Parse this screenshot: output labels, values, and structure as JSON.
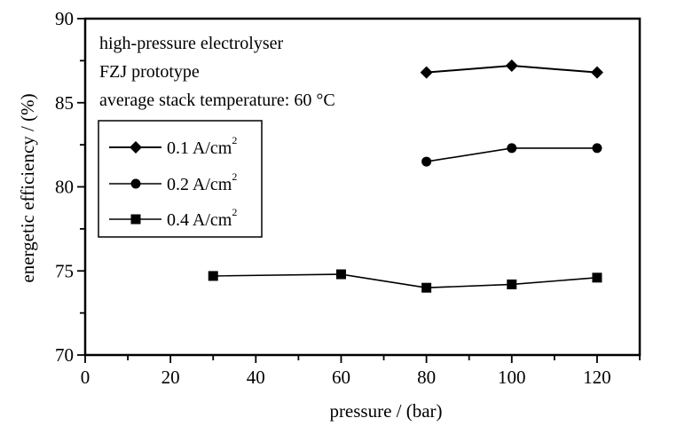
{
  "chart_data": {
    "type": "line",
    "title": "",
    "xlabel": "pressure / (bar)",
    "ylabel": "energetic efficiency / (%)",
    "xlim": [
      0,
      130
    ],
    "ylim": [
      70,
      90
    ],
    "xticks": [
      0,
      20,
      40,
      60,
      80,
      100,
      120
    ],
    "yticks": [
      70,
      75,
      80,
      85,
      90
    ],
    "xtick_labels": [
      "0",
      "20",
      "40",
      "60",
      "80",
      "100",
      "120"
    ],
    "ytick_labels": [
      "70",
      "75",
      "80",
      "85",
      "90"
    ],
    "grid": false,
    "annotations": [
      "high-pressure electrolyser",
      "FZJ prototype",
      "average stack temperature: 60 °C"
    ],
    "legend_position": "upper-left",
    "series": [
      {
        "name": "0.1 A/cm",
        "sup": "2",
        "marker": "diamond",
        "x": [
          80,
          100,
          120
        ],
        "y": [
          86.8,
          87.2,
          86.8
        ]
      },
      {
        "name": "0.2 A/cm",
        "sup": "2",
        "marker": "circle",
        "x": [
          80,
          100,
          120
        ],
        "y": [
          81.5,
          82.3,
          82.3
        ]
      },
      {
        "name": "0.4 A/cm",
        "sup": "2",
        "marker": "square",
        "x": [
          30,
          60,
          80,
          100,
          120
        ],
        "y": [
          74.7,
          74.8,
          74.0,
          74.2,
          74.6
        ]
      }
    ]
  },
  "colors": {
    "ink": "#000000",
    "background": "#ffffff"
  }
}
